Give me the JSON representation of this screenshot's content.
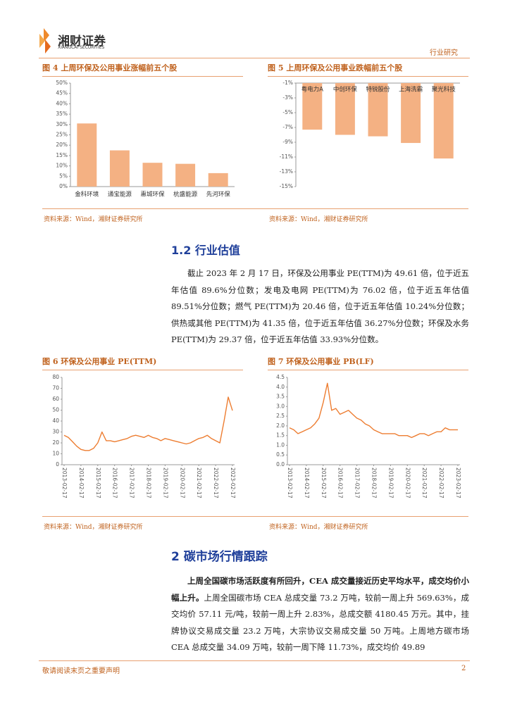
{
  "header": {
    "logo_cn": "湘财证券",
    "logo_en": "XIANGCAI SECURITIES",
    "section": "行业研究"
  },
  "chart_data": [
    {
      "type": "bar",
      "title": "图 4 上周环保及公用事业涨幅前五个股",
      "source": "资料来源：Wind，湘财证券研究所",
      "categories": [
        "金科环境",
        "通宝能源",
        "惠城环保",
        "杭盛能源",
        "先河环保"
      ],
      "values": [
        30.5,
        17.5,
        11.5,
        11,
        6.5
      ],
      "color": "#f4b183",
      "label_position": "bottom",
      "ylim": [
        0,
        50
      ],
      "yticks": [
        {
          "value": 0,
          "label": "0%"
        },
        {
          "value": 5,
          "label": "5%"
        },
        {
          "value": 10,
          "label": "10%"
        },
        {
          "value": 15,
          "label": "15%"
        },
        {
          "value": 20,
          "label": "20%"
        },
        {
          "value": 25,
          "label": "25%"
        },
        {
          "value": 30,
          "label": "30%"
        },
        {
          "value": 35,
          "label": "35%"
        },
        {
          "value": 40,
          "label": "40%"
        },
        {
          "value": 45,
          "label": "45%"
        },
        {
          "value": 50,
          "label": "50%"
        }
      ]
    },
    {
      "type": "bar",
      "title": "图 5 上周环保及公用事业跌幅前五个股",
      "source": "资料来源：Wind，湘财证券研究所",
      "categories": [
        "粤电力A",
        "中创环保",
        "特锐股份",
        "上海洗霸",
        "聚光科技"
      ],
      "values": [
        -7.3,
        -8,
        -8.2,
        -9.1,
        -11.2
      ],
      "color": "#f4b183",
      "label_position": "top",
      "ylim": [
        -15,
        -1
      ],
      "yticks": [
        {
          "value": -1,
          "label": "-1%"
        },
        {
          "value": -3,
          "label": "-3%"
        },
        {
          "value": -5,
          "label": "-5%"
        },
        {
          "value": -7,
          "label": "-7%"
        },
        {
          "value": -9,
          "label": "-9%"
        },
        {
          "value": -11,
          "label": "-11%"
        },
        {
          "value": -13,
          "label": "-13%"
        },
        {
          "value": -15,
          "label": "-15%"
        }
      ]
    },
    {
      "type": "line",
      "title": "图 6 环保及公用事业 PE(TTM)",
      "source": "资料来源：Wind，湘财证券研究所",
      "categories": [
        "2013-02-17",
        null,
        null,
        null,
        "2014-02-17",
        null,
        null,
        null,
        "2015-02-17",
        null,
        null,
        null,
        "2016-02-17",
        null,
        null,
        null,
        "2017-02-17",
        null,
        null,
        null,
        "2018-02-17",
        null,
        null,
        null,
        "2019-02-17",
        null,
        null,
        null,
        "2020-02-17",
        null,
        null,
        null,
        "2021-02-17",
        null,
        null,
        null,
        "2022-02-17",
        null,
        null,
        null,
        "2023-02-17"
      ],
      "values": [
        27,
        25,
        21,
        17,
        14,
        13,
        13,
        15,
        20,
        30,
        22,
        22,
        21,
        22,
        23,
        24,
        26,
        27,
        26,
        25,
        27,
        25,
        24,
        22,
        24,
        23,
        22,
        21,
        20,
        19,
        20,
        22,
        24,
        25,
        27,
        24,
        22,
        20,
        40,
        62,
        49.61
      ],
      "color": "#ed7d31",
      "ylim": [
        0,
        80
      ],
      "yticks": [
        0,
        10,
        20,
        30,
        40,
        50,
        60,
        70,
        80
      ]
    },
    {
      "type": "line",
      "title": "图 7 环保及公用事业 PB(LF)",
      "source": "资料来源：Wind，湘财证券研究所",
      "categories": [
        "2013-02-17",
        null,
        null,
        null,
        "2014-02-17",
        null,
        null,
        null,
        "2015-02-17",
        null,
        null,
        null,
        "2016-02-17",
        null,
        null,
        null,
        "2017-02-17",
        null,
        null,
        null,
        "2018-02-17",
        null,
        null,
        null,
        "2019-02-17",
        null,
        null,
        null,
        "2020-02-17",
        null,
        null,
        null,
        "2021-02-17",
        null,
        null,
        null,
        "2022-02-17",
        null,
        null,
        null,
        "2023-02-17"
      ],
      "values": [
        1.9,
        1.8,
        1.6,
        1.7,
        1.8,
        1.9,
        2.1,
        2.4,
        3.2,
        4.2,
        2.8,
        2.9,
        2.6,
        2.7,
        2.8,
        2.6,
        2.4,
        2.3,
        2.1,
        2.0,
        1.8,
        1.7,
        1.6,
        1.6,
        1.6,
        1.6,
        1.5,
        1.5,
        1.5,
        1.4,
        1.5,
        1.6,
        1.6,
        1.5,
        1.6,
        1.7,
        1.7,
        1.9,
        1.8,
        1.8,
        1.8
      ],
      "color": "#ed7d31",
      "ylim": [
        0,
        4.5
      ],
      "yticks": [
        {
          "value": 0,
          "label": "0.0"
        },
        0.5,
        {
          "value": 1,
          "label": "1.0"
        },
        1.5,
        {
          "value": 2,
          "label": "2.0"
        },
        2.5,
        {
          "value": 3,
          "label": "3.0"
        },
        3.5,
        {
          "value": 4,
          "label": "4.0"
        },
        4.5
      ]
    }
  ],
  "section_1_2": {
    "heading": "1.2 行业估值",
    "paragraph": "截止 2023 年 2 月 17 日，环保及公用事业 PE(TTM)为 49.61 倍，位于近五年估值 89.6%分位数；发电及电网 PE(TTM)为 76.02 倍，位于近五年估值 89.51%分位数；燃气 PE(TTM)为 20.46 倍，位于近五年估值 10.24%分位数；供热或其他 PE(TTM)为 41.35 倍，位于近五年估值 36.27%分位数；环保及水务 PE(TTM)为 29.37 倍，位于近五年估值 33.93%分位数。"
  },
  "section_2": {
    "heading": "2 碳市场行情跟踪",
    "lead": "上周全国碳市场活跃度有所回升，CEA 成交量接近历史平均水平，成交均价小幅上升。",
    "paragraph": "上周全国碳市场 CEA 总成交量 73.2 万吨，较前一周上升 569.63%，成交均价 57.11 元/吨，较前一周上升 2.83%，总成交额 4180.45 万元。其中，挂牌协议交易成交量 23.2 万吨，大宗协议交易成交量 50 万吨。上周地方碳市场 CEA 总成交量 34.09 万吨，较前一周下降 11.73%，成交均价 49.89"
  },
  "footer": {
    "disclaimer": "敬请阅读末页之重要声明",
    "page": "2"
  }
}
